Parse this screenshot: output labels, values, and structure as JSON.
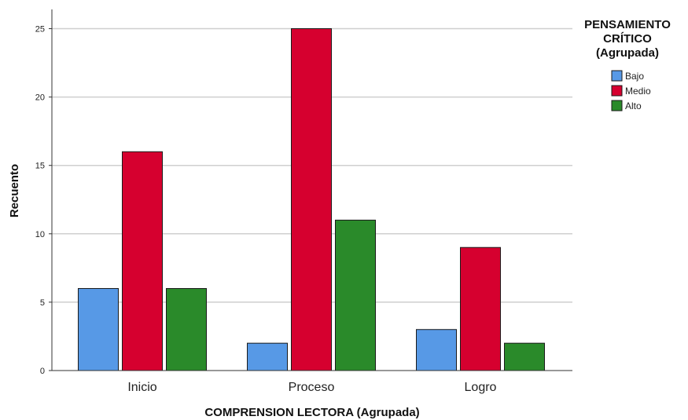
{
  "chart_data": {
    "type": "bar",
    "categories": [
      "Inicio",
      "Proceso",
      "Logro"
    ],
    "series": [
      {
        "name": "Bajo",
        "color": "#5799e6",
        "values": [
          6,
          2,
          3
        ]
      },
      {
        "name": "Medio",
        "color": "#d6002f",
        "values": [
          16,
          25,
          9
        ]
      },
      {
        "name": "Alto",
        "color": "#2a8a2a",
        "values": [
          6,
          11,
          2
        ]
      }
    ],
    "xlabel": "COMPRENSION LECTORA (Agrupada)",
    "ylabel": "Recuento",
    "ylim": [
      0,
      26
    ],
    "yticks": [
      0,
      5,
      10,
      15,
      20,
      25
    ],
    "grid": true,
    "legend": {
      "title_lines": [
        "PENSAMIENTO",
        "CRÍTICO",
        "(Agrupada)"
      ],
      "placement": "top-right"
    }
  }
}
